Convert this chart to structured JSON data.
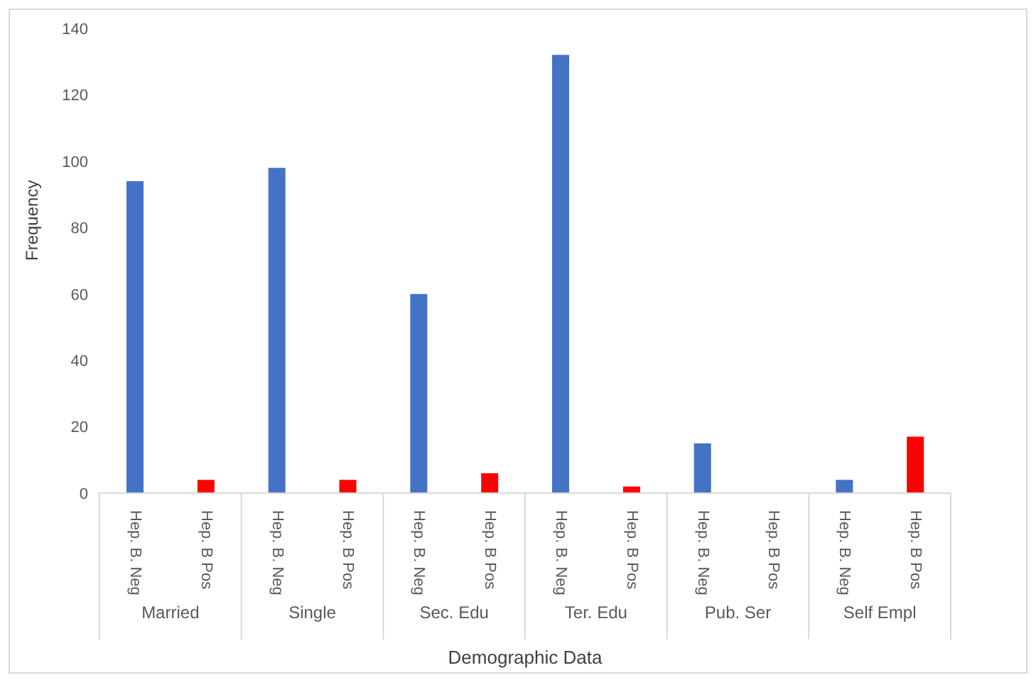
{
  "chart_data": {
    "type": "bar",
    "xlabel": "Demographic Data",
    "ylabel": "Frequency",
    "categories": [
      "Married",
      "Single",
      "Sec. Edu",
      "Ter. Edu",
      "Pub. Ser",
      "Self Empl"
    ],
    "series": [
      {
        "name": "Hep. B. Neg",
        "color": "#4472c4",
        "values": [
          94,
          98,
          60,
          132,
          15,
          4
        ]
      },
      {
        "name": "Hep. B Pos",
        "color": "#ff0000",
        "values": [
          4,
          4,
          6,
          2,
          0,
          17
        ]
      }
    ],
    "ylim": [
      0,
      140
    ],
    "yticks": [
      0,
      20,
      40,
      60,
      80,
      100,
      120,
      140
    ]
  }
}
